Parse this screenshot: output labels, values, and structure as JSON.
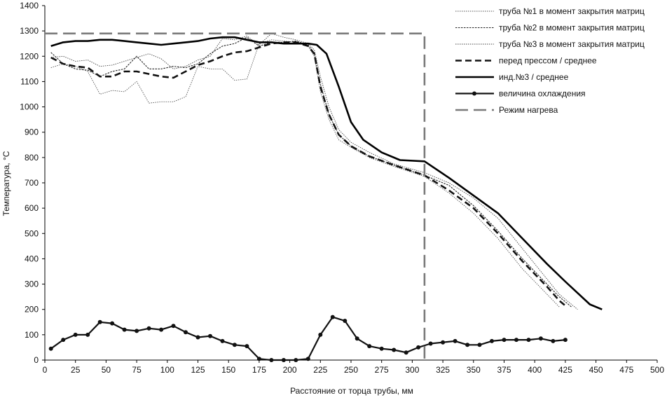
{
  "chart_data": {
    "type": "line",
    "xlabel": "Расстояние от торца трубы, мм",
    "ylabel": "Температура, °С",
    "xlim": [
      0,
      500
    ],
    "ylim": [
      0,
      1400
    ],
    "x_ticks": [
      0,
      25,
      50,
      75,
      100,
      125,
      150,
      175,
      200,
      225,
      250,
      275,
      300,
      325,
      350,
      375,
      400,
      425,
      450,
      475,
      500
    ],
    "y_ticks": [
      0,
      100,
      200,
      300,
      400,
      500,
      600,
      700,
      800,
      900,
      1000,
      1100,
      1200,
      1300,
      1400
    ],
    "grid": false,
    "legend_position": "top-right",
    "series": [
      {
        "name": "труба №1 в момент закрытия матриц",
        "style": "thin-dotted",
        "color": "#555555",
        "points": [
          [
            5,
            1155
          ],
          [
            15,
            1170
          ],
          [
            25,
            1160
          ],
          [
            35,
            1140
          ],
          [
            45,
            1050
          ],
          [
            55,
            1065
          ],
          [
            65,
            1060
          ],
          [
            75,
            1100
          ],
          [
            85,
            1015
          ],
          [
            95,
            1020
          ],
          [
            105,
            1020
          ],
          [
            115,
            1040
          ],
          [
            125,
            1160
          ],
          [
            135,
            1150
          ],
          [
            145,
            1150
          ],
          [
            155,
            1105
          ],
          [
            165,
            1110
          ],
          [
            175,
            1250
          ],
          [
            185,
            1265
          ],
          [
            195,
            1260
          ],
          [
            205,
            1255
          ],
          [
            215,
            1240
          ],
          [
            220,
            1200
          ],
          [
            225,
            1060
          ],
          [
            232,
            950
          ],
          [
            240,
            870
          ],
          [
            250,
            840
          ],
          [
            265,
            800
          ],
          [
            285,
            765
          ],
          [
            310,
            725
          ],
          [
            330,
            660
          ],
          [
            350,
            580
          ],
          [
            370,
            480
          ],
          [
            390,
            360
          ],
          [
            410,
            260
          ],
          [
            420,
            210
          ]
        ]
      },
      {
        "name": "труба №2 в момент закрытия матриц",
        "style": "dotted",
        "color": "#222222",
        "points": [
          [
            5,
            1215
          ],
          [
            15,
            1170
          ],
          [
            25,
            1150
          ],
          [
            35,
            1145
          ],
          [
            45,
            1120
          ],
          [
            55,
            1140
          ],
          [
            65,
            1150
          ],
          [
            75,
            1200
          ],
          [
            85,
            1150
          ],
          [
            95,
            1150
          ],
          [
            105,
            1160
          ],
          [
            115,
            1155
          ],
          [
            125,
            1170
          ],
          [
            135,
            1210
          ],
          [
            145,
            1240
          ],
          [
            155,
            1250
          ],
          [
            165,
            1275
          ],
          [
            175,
            1240
          ],
          [
            185,
            1255
          ],
          [
            195,
            1255
          ],
          [
            205,
            1260
          ],
          [
            215,
            1245
          ],
          [
            220,
            1210
          ],
          [
            225,
            1090
          ],
          [
            232,
            970
          ],
          [
            240,
            890
          ],
          [
            250,
            845
          ],
          [
            265,
            805
          ],
          [
            285,
            770
          ],
          [
            310,
            730
          ],
          [
            330,
            690
          ],
          [
            350,
            610
          ],
          [
            370,
            510
          ],
          [
            390,
            400
          ],
          [
            410,
            300
          ],
          [
            420,
            250
          ],
          [
            430,
            210
          ]
        ]
      },
      {
        "name": "труба №3 в момент закрытия матриц",
        "style": "thin-dotted",
        "color": "#444444",
        "points": [
          [
            5,
            1195
          ],
          [
            15,
            1200
          ],
          [
            25,
            1180
          ],
          [
            35,
            1185
          ],
          [
            45,
            1160
          ],
          [
            55,
            1165
          ],
          [
            65,
            1180
          ],
          [
            75,
            1195
          ],
          [
            85,
            1210
          ],
          [
            95,
            1190
          ],
          [
            105,
            1150
          ],
          [
            115,
            1160
          ],
          [
            125,
            1185
          ],
          [
            135,
            1200
          ],
          [
            145,
            1270
          ],
          [
            155,
            1265
          ],
          [
            165,
            1280
          ],
          [
            175,
            1245
          ],
          [
            185,
            1290
          ],
          [
            195,
            1275
          ],
          [
            205,
            1265
          ],
          [
            215,
            1250
          ],
          [
            220,
            1225
          ],
          [
            225,
            1120
          ],
          [
            232,
            1000
          ],
          [
            240,
            910
          ],
          [
            250,
            860
          ],
          [
            265,
            820
          ],
          [
            285,
            775
          ],
          [
            310,
            740
          ],
          [
            330,
            700
          ],
          [
            350,
            640
          ],
          [
            370,
            560
          ],
          [
            390,
            440
          ],
          [
            410,
            320
          ],
          [
            420,
            260
          ],
          [
            435,
            200
          ]
        ]
      },
      {
        "name": "перед прессом / среднее",
        "style": "dashed",
        "color": "#111111",
        "points": [
          [
            5,
            1195
          ],
          [
            15,
            1170
          ],
          [
            25,
            1160
          ],
          [
            35,
            1155
          ],
          [
            45,
            1120
          ],
          [
            55,
            1120
          ],
          [
            65,
            1140
          ],
          [
            75,
            1140
          ],
          [
            85,
            1130
          ],
          [
            95,
            1120
          ],
          [
            105,
            1115
          ],
          [
            115,
            1140
          ],
          [
            125,
            1165
          ],
          [
            135,
            1180
          ],
          [
            145,
            1200
          ],
          [
            155,
            1215
          ],
          [
            165,
            1220
          ],
          [
            175,
            1235
          ],
          [
            185,
            1250
          ],
          [
            195,
            1255
          ],
          [
            205,
            1255
          ],
          [
            215,
            1240
          ],
          [
            220,
            1210
          ],
          [
            225,
            1080
          ],
          [
            232,
            970
          ],
          [
            240,
            890
          ],
          [
            250,
            845
          ],
          [
            265,
            805
          ],
          [
            285,
            770
          ],
          [
            310,
            730
          ],
          [
            330,
            670
          ],
          [
            350,
            600
          ],
          [
            370,
            500
          ],
          [
            390,
            390
          ],
          [
            410,
            290
          ],
          [
            420,
            235
          ],
          [
            425,
            215
          ]
        ]
      },
      {
        "name": "инд.№3 / среднее",
        "style": "solid-thick",
        "color": "#000000",
        "points": [
          [
            5,
            1240
          ],
          [
            15,
            1255
          ],
          [
            25,
            1260
          ],
          [
            35,
            1260
          ],
          [
            45,
            1265
          ],
          [
            55,
            1265
          ],
          [
            65,
            1260
          ],
          [
            75,
            1255
          ],
          [
            85,
            1250
          ],
          [
            95,
            1245
          ],
          [
            105,
            1250
          ],
          [
            115,
            1255
          ],
          [
            125,
            1260
          ],
          [
            135,
            1270
          ],
          [
            145,
            1275
          ],
          [
            155,
            1275
          ],
          [
            165,
            1265
          ],
          [
            175,
            1255
          ],
          [
            185,
            1255
          ],
          [
            195,
            1250
          ],
          [
            205,
            1250
          ],
          [
            215,
            1250
          ],
          [
            222,
            1245
          ],
          [
            230,
            1210
          ],
          [
            240,
            1080
          ],
          [
            250,
            940
          ],
          [
            260,
            870
          ],
          [
            275,
            820
          ],
          [
            290,
            790
          ],
          [
            310,
            785
          ],
          [
            330,
            720
          ],
          [
            350,
            650
          ],
          [
            370,
            580
          ],
          [
            390,
            480
          ],
          [
            410,
            380
          ],
          [
            425,
            310
          ],
          [
            445,
            220
          ],
          [
            455,
            200
          ]
        ]
      },
      {
        "name": "величина охлаждения",
        "style": "solid-markers",
        "color": "#111111",
        "points": [
          [
            5,
            45
          ],
          [
            15,
            80
          ],
          [
            25,
            100
          ],
          [
            35,
            100
          ],
          [
            45,
            150
          ],
          [
            55,
            145
          ],
          [
            65,
            120
          ],
          [
            75,
            115
          ],
          [
            85,
            125
          ],
          [
            95,
            120
          ],
          [
            105,
            135
          ],
          [
            115,
            110
          ],
          [
            125,
            90
          ],
          [
            135,
            95
          ],
          [
            145,
            75
          ],
          [
            155,
            60
          ],
          [
            165,
            55
          ],
          [
            175,
            5
          ],
          [
            185,
            0
          ],
          [
            195,
            0
          ],
          [
            205,
            0
          ],
          [
            215,
            5
          ],
          [
            225,
            100
          ],
          [
            235,
            170
          ],
          [
            245,
            155
          ],
          [
            255,
            85
          ],
          [
            265,
            55
          ],
          [
            275,
            45
          ],
          [
            285,
            40
          ],
          [
            295,
            30
          ],
          [
            305,
            50
          ],
          [
            315,
            65
          ],
          [
            325,
            70
          ],
          [
            335,
            75
          ],
          [
            345,
            60
          ],
          [
            355,
            60
          ],
          [
            365,
            75
          ],
          [
            375,
            80
          ],
          [
            385,
            80
          ],
          [
            395,
            80
          ],
          [
            405,
            85
          ],
          [
            415,
            75
          ],
          [
            425,
            80
          ]
        ]
      },
      {
        "name": "Режим нагрева",
        "style": "long-dashed-gray",
        "color": "#7a7a7a",
        "points": [
          [
            0,
            1290
          ],
          [
            310,
            1290
          ],
          [
            310,
            0
          ]
        ]
      }
    ]
  }
}
